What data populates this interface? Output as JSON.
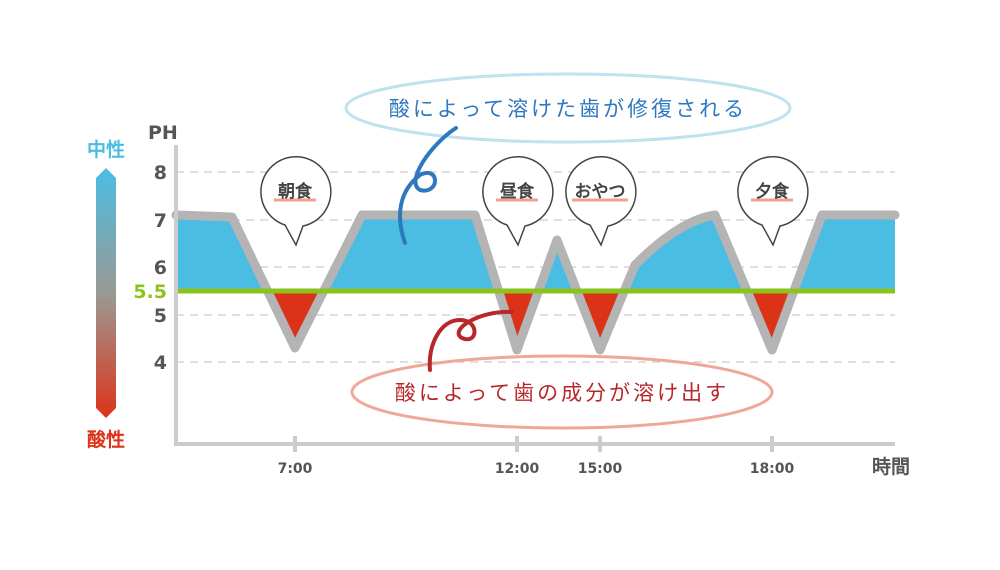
{
  "scale": {
    "top_label": "中性",
    "bottom_label": "酸性",
    "top_color": "#4bbde3",
    "bottom_color": "#dc3318"
  },
  "axes": {
    "y_title": "PH",
    "x_title": "時間",
    "y_ticks": [
      "8",
      "7",
      "6",
      "5",
      "4"
    ],
    "threshold_label": "5.5",
    "x_ticks": [
      "7:00",
      "12:00",
      "15:00",
      "18:00"
    ]
  },
  "bubbles": [
    "朝食",
    "昼食",
    "おやつ",
    "夕食"
  ],
  "notes": {
    "repair": "酸によって溶けた歯が修復される",
    "dissolve": "酸によって歯の成分が溶け出す"
  },
  "colors": {
    "neutral_fill": "#4bbde3",
    "acid_fill": "#dc3318",
    "threshold": "#8cc21e",
    "curve": "#b4b4b4"
  }
}
